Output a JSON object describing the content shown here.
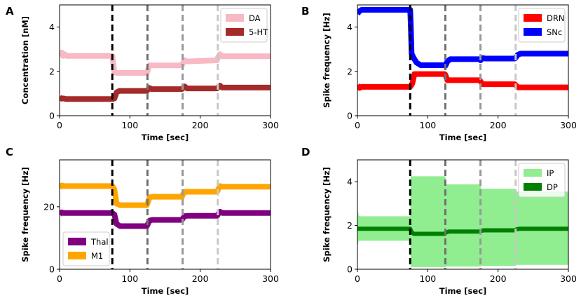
{
  "chart_data": [
    {
      "type": "line",
      "panel_label": "A",
      "xlabel": "Time [sec]",
      "ylabel": "Concentration [nM]",
      "xlim": [
        0,
        300
      ],
      "ylim": [
        0,
        5
      ],
      "xticks": [
        0,
        100,
        200,
        300
      ],
      "yticks": [
        0,
        2,
        4
      ],
      "legend_position": "top-right",
      "vlines": [
        {
          "x": 75,
          "color": "#000000"
        },
        {
          "x": 125,
          "color": "#707070"
        },
        {
          "x": 175,
          "color": "#999999"
        },
        {
          "x": 225,
          "color": "#c8c8c8"
        }
      ],
      "series": [
        {
          "name": "DA",
          "color": "#f7b9c4",
          "width": 8,
          "x": [
            0,
            3,
            5,
            7,
            10,
            75,
            78,
            81,
            124,
            125,
            128,
            131,
            174,
            175,
            178,
            181,
            224,
            225,
            228,
            231,
            300
          ],
          "y": [
            2.78,
            2.85,
            2.7,
            2.78,
            2.7,
            2.7,
            1.95,
            1.93,
            1.93,
            2.0,
            2.28,
            2.27,
            2.27,
            2.35,
            2.5,
            2.45,
            2.5,
            2.62,
            2.78,
            2.68,
            2.68
          ]
        },
        {
          "name": "5-HT",
          "color": "#a52a2a",
          "width": 8,
          "x": [
            0,
            3,
            6,
            9,
            75,
            78,
            81,
            85,
            124,
            126,
            128,
            131,
            174,
            176,
            178,
            181,
            224,
            226,
            228,
            231,
            300
          ],
          "y": [
            0.83,
            0.77,
            0.78,
            0.75,
            0.75,
            0.78,
            1.05,
            1.12,
            1.12,
            1.18,
            1.25,
            1.2,
            1.2,
            1.27,
            1.32,
            1.23,
            1.23,
            1.3,
            1.36,
            1.27,
            1.27
          ]
        }
      ]
    },
    {
      "type": "line",
      "panel_label": "B",
      "xlabel": "Time [sec]",
      "ylabel": "Spike frequency [Hz]",
      "xlim": [
        0,
        300
      ],
      "ylim": [
        0,
        5
      ],
      "xticks": [
        0,
        100,
        200,
        300
      ],
      "yticks": [
        0,
        2,
        4
      ],
      "legend_position": "top-right",
      "vlines": [
        {
          "x": 75,
          "color": "#000000"
        },
        {
          "x": 125,
          "color": "#707070"
        },
        {
          "x": 175,
          "color": "#999999"
        },
        {
          "x": 225,
          "color": "#c8c8c8"
        }
      ],
      "series": [
        {
          "name": "DRN",
          "color": "#ff0000",
          "width": 8,
          "x": [
            0,
            3,
            6,
            75,
            78,
            81,
            124,
            125,
            128,
            131,
            174,
            175,
            178,
            181,
            224,
            225,
            228,
            231,
            300
          ],
          "y": [
            1.38,
            1.25,
            1.3,
            1.3,
            1.45,
            1.88,
            1.88,
            1.85,
            1.6,
            1.6,
            1.6,
            1.55,
            1.42,
            1.42,
            1.42,
            1.38,
            1.28,
            1.28,
            1.28
          ]
        },
        {
          "name": "SNc",
          "color": "#0000ff",
          "width": 8,
          "x": [
            0,
            3,
            6,
            10,
            75,
            76,
            77,
            80,
            84,
            90,
            124,
            125,
            128,
            132,
            174,
            175,
            178,
            182,
            224,
            225,
            228,
            232,
            300
          ],
          "y": [
            4.6,
            4.72,
            4.78,
            4.78,
            4.78,
            3.9,
            2.8,
            2.6,
            2.4,
            2.28,
            2.28,
            2.25,
            2.45,
            2.55,
            2.55,
            2.5,
            2.6,
            2.58,
            2.58,
            2.62,
            2.75,
            2.8,
            2.8
          ]
        }
      ]
    },
    {
      "type": "line",
      "panel_label": "C",
      "xlabel": "Time [sec]",
      "ylabel": "Spike frequency [Hz]",
      "xlim": [
        0,
        300
      ],
      "ylim": [
        0,
        35
      ],
      "xticks": [
        0,
        100,
        200,
        300
      ],
      "yticks": [
        0,
        20
      ],
      "legend_position": "bottom-left",
      "vlines": [
        {
          "x": 75,
          "color": "#000000"
        },
        {
          "x": 125,
          "color": "#707070"
        },
        {
          "x": 175,
          "color": "#999999"
        },
        {
          "x": 225,
          "color": "#c8c8c8"
        }
      ],
      "series": [
        {
          "name": "Thal",
          "color": "#800080",
          "width": 8,
          "x": [
            0,
            3,
            6,
            75,
            78,
            81,
            86,
            124,
            125,
            128,
            132,
            174,
            175,
            178,
            182,
            224,
            225,
            228,
            232,
            300
          ],
          "y": [
            17.5,
            18.2,
            18.0,
            18.0,
            17.5,
            14.5,
            13.8,
            13.8,
            14.2,
            15.6,
            15.8,
            15.8,
            16.2,
            17.0,
            17.1,
            17.1,
            17.5,
            18.4,
            18.0,
            18.0
          ]
        },
        {
          "name": "M1",
          "color": "#ffa500",
          "width": 8,
          "x": [
            0,
            3,
            6,
            75,
            78,
            81,
            86,
            124,
            125,
            128,
            132,
            174,
            175,
            178,
            182,
            224,
            225,
            228,
            232,
            300
          ],
          "y": [
            26.0,
            26.8,
            26.6,
            26.6,
            25.5,
            21.0,
            20.5,
            20.5,
            21.0,
            23.0,
            23.2,
            23.2,
            23.8,
            24.8,
            24.8,
            24.8,
            25.3,
            26.6,
            26.4,
            26.4
          ]
        }
      ]
    },
    {
      "type": "area",
      "panel_label": "D",
      "xlabel": "Time [sec]",
      "ylabel": "Spike frequency [Hz]",
      "xlim": [
        0,
        300
      ],
      "ylim": [
        0,
        5
      ],
      "xticks": [
        0,
        100,
        200,
        300
      ],
      "yticks": [
        0,
        2,
        4
      ],
      "legend_position": "top-right",
      "vlines": [
        {
          "x": 75,
          "color": "#000000"
        },
        {
          "x": 125,
          "color": "#707070"
        },
        {
          "x": 175,
          "color": "#999999"
        },
        {
          "x": 225,
          "color": "#c8c8c8"
        }
      ],
      "series": [
        {
          "name": "IP",
          "color": "#90ee90",
          "kind": "band",
          "x": [
            0,
            1,
            2,
            4,
            75,
            76,
            77,
            125,
            126,
            175,
            176,
            225,
            226,
            300
          ],
          "upper": [
            2.7,
            2.6,
            2.45,
            2.42,
            2.42,
            4.6,
            4.25,
            4.25,
            3.88,
            3.88,
            3.68,
            3.68,
            3.55,
            3.55
          ],
          "lower": [
            1.0,
            1.2,
            1.3,
            1.3,
            1.3,
            0.0,
            0.1,
            0.1,
            0.12,
            0.12,
            0.15,
            0.15,
            0.2,
            0.2
          ]
        },
        {
          "name": "DP",
          "color": "#008000",
          "width": 6,
          "x": [
            0,
            3,
            75,
            77,
            80,
            124,
            126,
            130,
            174,
            176,
            180,
            224,
            226,
            230,
            300
          ],
          "y": [
            1.85,
            1.85,
            1.85,
            1.7,
            1.62,
            1.62,
            1.68,
            1.72,
            1.72,
            1.76,
            1.78,
            1.78,
            1.82,
            1.85,
            1.85
          ]
        }
      ]
    }
  ]
}
